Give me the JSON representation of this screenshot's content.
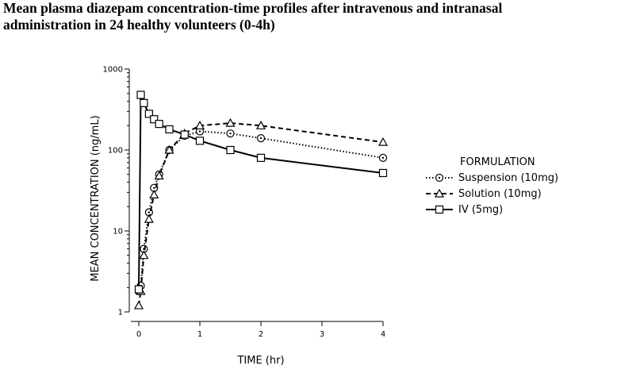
{
  "title_line1": "Mean plasma diazepam concentration-time profiles after intravenous and intranasal",
  "title_line2": "administration in 24 healthy volunteers (0-4h)",
  "chart_data": {
    "type": "line",
    "title": "Mean plasma diazepam concentration-time profiles after intravenous and intranasal administration in 24 healthy volunteers (0-4h)",
    "xlabel": "TIME (hr)",
    "ylabel": "MEAN CONCENTRATION (ng/mL)",
    "xlim": [
      0,
      4
    ],
    "ylim": [
      1,
      1000
    ],
    "yscale": "log",
    "xticks": [
      0,
      1,
      2,
      3,
      4
    ],
    "yticks": [
      1,
      10,
      100,
      1000
    ],
    "xtick_labels": [
      "0",
      "1",
      "2",
      "3",
      "4"
    ],
    "ytick_labels": [
      "1",
      "10",
      "100",
      "1000"
    ],
    "legend_title": "FORMULATION",
    "legend_position": "right",
    "series": [
      {
        "name": "Suspension (10mg)",
        "style": "dotted",
        "marker": "circle",
        "x": [
          0,
          0.033,
          0.083,
          0.167,
          0.25,
          0.333,
          0.5,
          0.75,
          1,
          1.5,
          2,
          4
        ],
        "y": [
          1.8,
          2.1,
          6,
          17,
          34,
          50,
          100,
          150,
          170,
          160,
          140,
          80
        ]
      },
      {
        "name": "Solution (10mg)",
        "style": "dashed",
        "marker": "triangle",
        "x": [
          0,
          0.033,
          0.083,
          0.167,
          0.25,
          0.333,
          0.5,
          0.75,
          1,
          1.5,
          2,
          4
        ],
        "y": [
          1.2,
          1.8,
          5,
          14,
          28,
          48,
          100,
          160,
          200,
          215,
          200,
          125
        ]
      },
      {
        "name": "IV (5mg)",
        "style": "solid",
        "marker": "square",
        "x": [
          0,
          0.033,
          0.083,
          0.167,
          0.25,
          0.333,
          0.5,
          0.75,
          1,
          1.5,
          2,
          4
        ],
        "y": [
          1.9,
          480,
          380,
          280,
          240,
          210,
          180,
          155,
          130,
          100,
          80,
          52
        ]
      }
    ]
  }
}
